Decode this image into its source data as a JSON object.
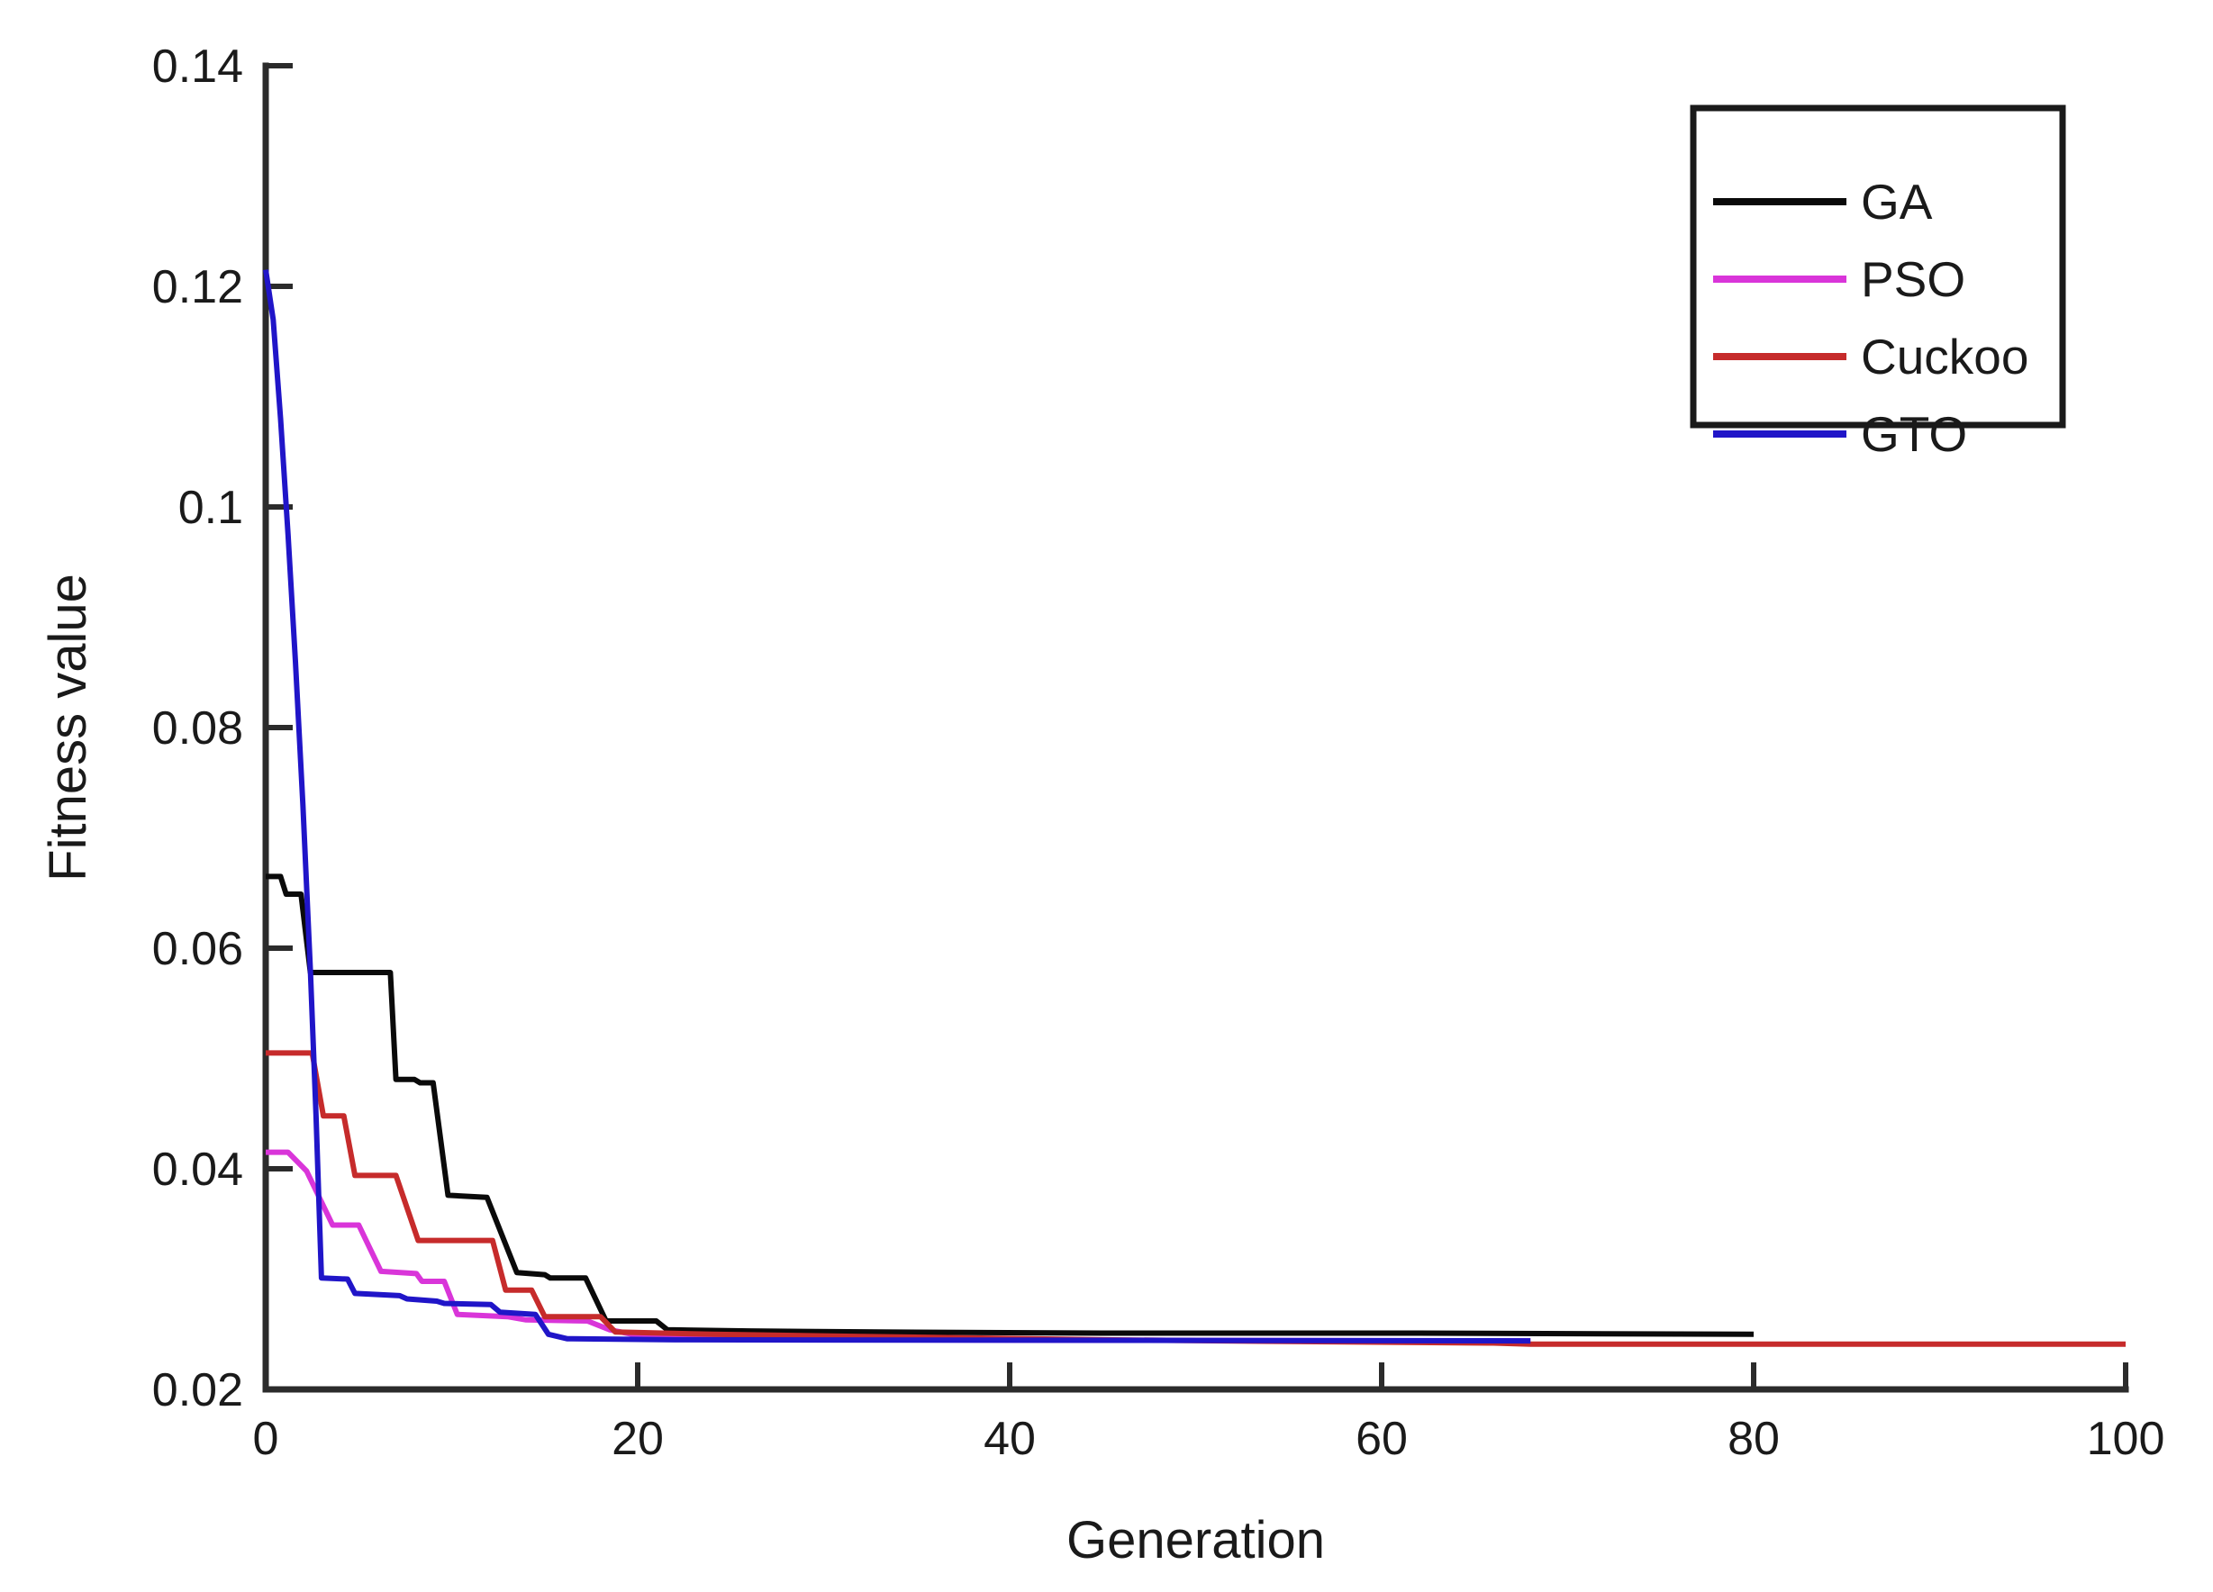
{
  "figure": {
    "background": "#ffffff",
    "axis_color": "#2b2b2b",
    "text_color": "#1a1a1a"
  },
  "chart_data": {
    "type": "line",
    "title": "",
    "xlabel": "Generation",
    "ylabel": "Fitness value",
    "xlim": [
      0,
      100
    ],
    "ylim": [
      0.02,
      0.14
    ],
    "xticks": [
      0,
      20,
      40,
      60,
      80,
      100
    ],
    "yticks": [
      0.02,
      0.04,
      0.06,
      0.08,
      0.1,
      0.12,
      0.14
    ],
    "grid": false,
    "legend_position": "top-right",
    "legend_entries": [
      "GA",
      "PSO",
      "Cuckoo",
      "GTO"
    ],
    "series": [
      {
        "name": "GA",
        "color": "#0a0a0a",
        "points": [
          [
            0,
            0.0665
          ],
          [
            0.8,
            0.0665
          ],
          [
            1.1,
            0.0649
          ],
          [
            1.9,
            0.0649
          ],
          [
            2.4,
            0.0578
          ],
          [
            6.7,
            0.0578
          ],
          [
            7.0,
            0.0481
          ],
          [
            8.0,
            0.0481
          ],
          [
            8.3,
            0.0478
          ],
          [
            9.0,
            0.0478
          ],
          [
            9.8,
            0.0376
          ],
          [
            11.9,
            0.0374
          ],
          [
            13.5,
            0.0306
          ],
          [
            15.0,
            0.0304
          ],
          [
            15.3,
            0.0301
          ],
          [
            17.2,
            0.0301
          ],
          [
            18.3,
            0.0262
          ],
          [
            21.0,
            0.0262
          ],
          [
            21.6,
            0.0254
          ],
          [
            26.0,
            0.0253
          ],
          [
            33.0,
            0.0252
          ],
          [
            45.0,
            0.0251
          ],
          [
            62.0,
            0.0251
          ],
          [
            80.0,
            0.025
          ]
        ]
      },
      {
        "name": "PSO",
        "color": "#d935d9",
        "points": [
          [
            0,
            0.0415
          ],
          [
            1.2,
            0.0415
          ],
          [
            2.2,
            0.0398
          ],
          [
            3.6,
            0.0349
          ],
          [
            5.0,
            0.0349
          ],
          [
            5.6,
            0.0328
          ],
          [
            6.2,
            0.0307
          ],
          [
            8.1,
            0.0305
          ],
          [
            8.4,
            0.0298
          ],
          [
            9.6,
            0.0298
          ],
          [
            10.3,
            0.0268
          ],
          [
            13.0,
            0.0266
          ],
          [
            14.0,
            0.0263
          ],
          [
            17.3,
            0.0262
          ],
          [
            18.5,
            0.0254
          ],
          [
            20.0,
            0.0249
          ],
          [
            22.0,
            0.0247
          ],
          [
            26.0,
            0.0246
          ],
          [
            32.0,
            0.0245
          ],
          [
            68.0,
            0.0244
          ]
        ]
      },
      {
        "name": "Cuckoo",
        "color": "#c62b2b",
        "points": [
          [
            0,
            0.0505
          ],
          [
            2.5,
            0.0505
          ],
          [
            3.1,
            0.0448
          ],
          [
            4.2,
            0.0448
          ],
          [
            4.8,
            0.0394
          ],
          [
            7.0,
            0.0394
          ],
          [
            8.2,
            0.0335
          ],
          [
            12.2,
            0.0335
          ],
          [
            12.9,
            0.029
          ],
          [
            14.3,
            0.029
          ],
          [
            15.0,
            0.0266
          ],
          [
            18.0,
            0.0266
          ],
          [
            18.8,
            0.0252
          ],
          [
            24.0,
            0.025
          ],
          [
            32.0,
            0.0248
          ],
          [
            45.0,
            0.0245
          ],
          [
            58.0,
            0.0243
          ],
          [
            66.0,
            0.0242
          ],
          [
            68.0,
            0.0241
          ],
          [
            100.0,
            0.0241
          ]
        ]
      },
      {
        "name": "GTO",
        "color": "#2015c8",
        "points": [
          [
            0,
            0.1215
          ],
          [
            0.4,
            0.117
          ],
          [
            0.8,
            0.108
          ],
          [
            1.2,
            0.0975
          ],
          [
            1.6,
            0.086
          ],
          [
            2.0,
            0.073
          ],
          [
            2.4,
            0.058
          ],
          [
            2.7,
            0.045
          ],
          [
            3.0,
            0.0301
          ],
          [
            4.4,
            0.03
          ],
          [
            4.8,
            0.0287
          ],
          [
            7.2,
            0.0285
          ],
          [
            7.6,
            0.0282
          ],
          [
            9.2,
            0.028
          ],
          [
            9.6,
            0.0278
          ],
          [
            12.1,
            0.0277
          ],
          [
            12.6,
            0.027
          ],
          [
            14.5,
            0.0268
          ],
          [
            15.2,
            0.025
          ],
          [
            16.2,
            0.0246
          ],
          [
            22.0,
            0.0245
          ],
          [
            68.0,
            0.0244
          ]
        ]
      }
    ]
  }
}
